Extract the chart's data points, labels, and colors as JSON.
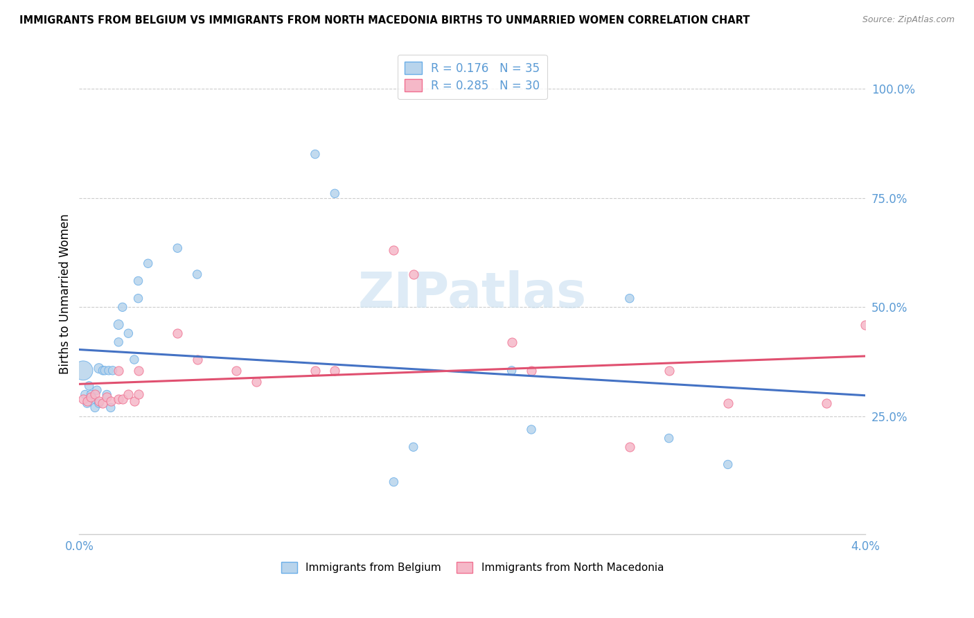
{
  "title": "IMMIGRANTS FROM BELGIUM VS IMMIGRANTS FROM NORTH MACEDONIA BIRTHS TO UNMARRIED WOMEN CORRELATION CHART",
  "source": "Source: ZipAtlas.com",
  "ylabel": "Births to Unmarried Women",
  "legend_belgium": "Immigrants from Belgium",
  "legend_macedonia": "Immigrants from North Macedonia",
  "R_belgium": "0.176",
  "N_belgium": "35",
  "R_macedonia": "0.285",
  "N_macedonia": "30",
  "color_belgium_fill": "#b8d4ec",
  "color_belgium_edge": "#6aaee8",
  "color_macedonia_fill": "#f5b8c8",
  "color_macedonia_edge": "#f07090",
  "color_line_belgium": "#4472c4",
  "color_line_macedonia": "#e05070",
  "color_axis_text": "#5b9bd5",
  "color_grid": "#cccccc",
  "watermark_color": "#c8dff0",
  "belgium_x": [
    0.0002,
    0.0003,
    0.0004,
    0.0005,
    0.0006,
    0.0007,
    0.0008,
    0.0009,
    0.001,
    0.001,
    0.0012,
    0.0013,
    0.0014,
    0.0015,
    0.0016,
    0.0017,
    0.002,
    0.002,
    0.0022,
    0.0025,
    0.0028,
    0.003,
    0.003,
    0.0035,
    0.005,
    0.006,
    0.012,
    0.013,
    0.016,
    0.017,
    0.022,
    0.023,
    0.028,
    0.03,
    0.033
  ],
  "belgium_y": [
    0.355,
    0.3,
    0.28,
    0.32,
    0.3,
    0.29,
    0.27,
    0.31,
    0.36,
    0.28,
    0.355,
    0.355,
    0.3,
    0.355,
    0.27,
    0.355,
    0.46,
    0.42,
    0.5,
    0.44,
    0.38,
    0.56,
    0.52,
    0.6,
    0.635,
    0.575,
    0.85,
    0.76,
    0.1,
    0.18,
    0.355,
    0.22,
    0.52,
    0.2,
    0.14
  ],
  "belgium_sizes": [
    400,
    80,
    80,
    80,
    80,
    80,
    80,
    80,
    100,
    80,
    80,
    80,
    80,
    80,
    80,
    80,
    100,
    80,
    80,
    80,
    80,
    80,
    80,
    80,
    80,
    80,
    80,
    80,
    80,
    80,
    80,
    80,
    80,
    80,
    80
  ],
  "macedonia_x": [
    0.0002,
    0.0004,
    0.0006,
    0.0008,
    0.001,
    0.0012,
    0.0014,
    0.0016,
    0.002,
    0.002,
    0.0022,
    0.0025,
    0.0028,
    0.003,
    0.003,
    0.005,
    0.006,
    0.008,
    0.009,
    0.012,
    0.013,
    0.016,
    0.017,
    0.022,
    0.023,
    0.028,
    0.03,
    0.033,
    0.038,
    0.04
  ],
  "macedonia_y": [
    0.29,
    0.285,
    0.295,
    0.3,
    0.285,
    0.28,
    0.295,
    0.285,
    0.355,
    0.29,
    0.29,
    0.3,
    0.285,
    0.355,
    0.3,
    0.44,
    0.38,
    0.355,
    0.33,
    0.355,
    0.355,
    0.63,
    0.575,
    0.42,
    0.355,
    0.18,
    0.355,
    0.28,
    0.28,
    0.46
  ],
  "xlim": [
    0.0,
    0.04
  ],
  "ylim": [
    -0.02,
    1.08
  ],
  "yticks": [
    0.25,
    0.5,
    0.75,
    1.0
  ]
}
